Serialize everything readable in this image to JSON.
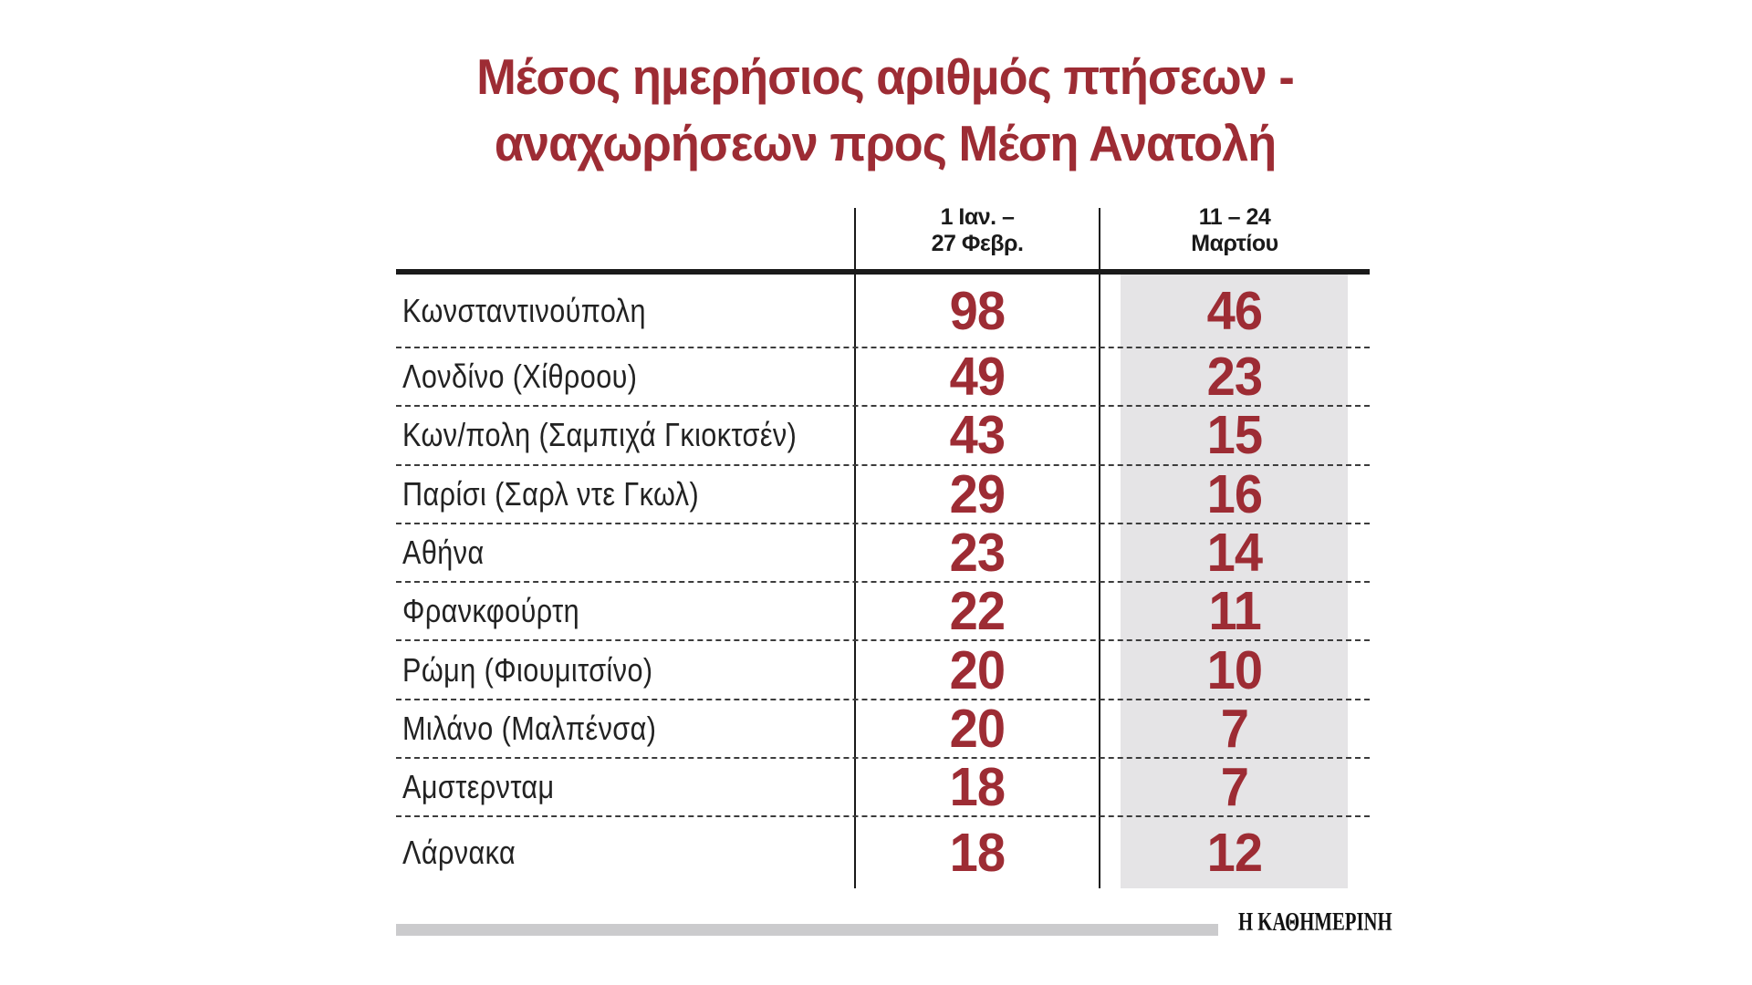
{
  "title": "Μέσος ημερήσιος αριθμός πτήσεων -\nαναχωρήσεων προς Μέση Ανατολή",
  "columns": [
    {
      "label": "1 Ιαν. –\n27 Φεβρ."
    },
    {
      "label": "11 – 24\nΜαρτίου"
    }
  ],
  "rows": [
    {
      "city": "Κωνσταντινούπολη",
      "period1": "98",
      "period2": "46"
    },
    {
      "city": "Λονδίνο (Χίθροου)",
      "period1": "49",
      "period2": "23"
    },
    {
      "city": "Κων/πολη (Σαμπιχά Γκιοκτσέν)",
      "period1": "43",
      "period2": "15"
    },
    {
      "city": "Παρίσι (Σαρλ ντε Γκωλ)",
      "period1": "29",
      "period2": "16"
    },
    {
      "city": "Αθήνα",
      "period1": "23",
      "period2": "14"
    },
    {
      "city": "Φρανκφούρτη",
      "period1": "22",
      "period2": "11"
    },
    {
      "city": "Ρώμη (Φιουμιτσίνο)",
      "period1": "20",
      "period2": "10"
    },
    {
      "city": "Μιλάνο (Μαλπένσα)",
      "period1": "20",
      "period2": "7"
    },
    {
      "city": "Αμστερνταμ",
      "period1": "18",
      "period2": "7"
    },
    {
      "city": "Λάρνακα",
      "period1": "18",
      "period2": "12"
    }
  ],
  "source": "Η ΚΑΘΗΜΕΡΙΝΗ",
  "colors": {
    "accent_red": "#9d2c34",
    "line_black": "#1a1a1a",
    "highlight_column_bg": "#e5e4e6",
    "footer_bar_gray": "#cbcbcd"
  },
  "chart_data": {
    "type": "table",
    "title": "Μέσος ημερήσιος αριθμός πτήσεων - αναχωρήσεων προς Μέση Ανατολή",
    "categories": [
      "Κωνσταντινούπολη",
      "Λονδίνο (Χίθροου)",
      "Κων/πολη (Σαμπιχά Γκιοκτσέν)",
      "Παρίσι (Σαρλ ντε Γκωλ)",
      "Αθήνα",
      "Φρανκφούρτη",
      "Ρώμη (Φιουμιτσίνο)",
      "Μιλάνο (Μαλπένσα)",
      "Αμστερνταμ",
      "Λάρνακα"
    ],
    "series": [
      {
        "name": "1 Ιαν. – 27 Φεβρ.",
        "values": [
          98,
          49,
          43,
          29,
          23,
          22,
          20,
          20,
          18,
          18
        ]
      },
      {
        "name": "11 – 24 Μαρτίου",
        "values": [
          46,
          23,
          15,
          16,
          14,
          11,
          10,
          7,
          7,
          12
        ]
      }
    ],
    "source": "Η ΚΑΘΗΜΕΡΙΝΗ",
    "layout_hints": {
      "highlighted_column": "11 – 24 Μαρτίου",
      "row_separators": "dotted",
      "header_separator": "thick solid",
      "legend_position": "column headers"
    }
  }
}
